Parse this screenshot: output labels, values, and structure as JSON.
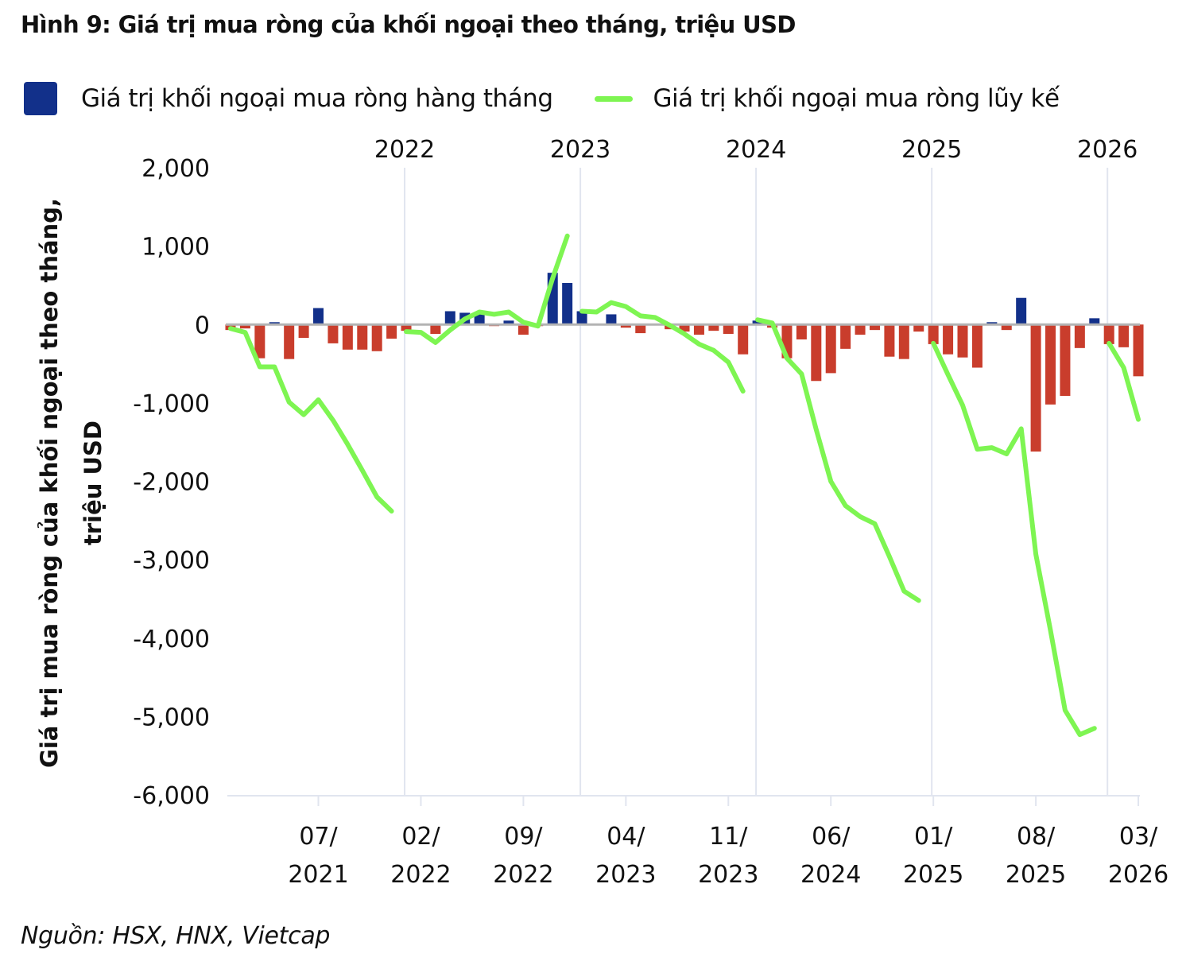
{
  "title": "Hình 9: Giá trị mua ròng của khối ngoại theo tháng, triệu USD",
  "source": "Nguồn: HSX, HNX, Vietcap",
  "legend": {
    "bar_label": "Giá trị khối ngoại mua ròng hàng tháng",
    "line_label": "Giá trị khối ngoại mua ròng lũy kế"
  },
  "colors": {
    "positive_bar": "#12308a",
    "negative_bar": "#c93d2c",
    "line": "#7ef552",
    "zero_line": "#b3b3b3",
    "grid_line": "#e1e5ef"
  },
  "chart_data": {
    "type": "bar",
    "title": "Hình 9: Giá trị mua ròng của khối ngoại theo tháng, triệu USD",
    "xlabel": "",
    "ylabel": "Giá trị mua ròng của khối ngoại theo tháng, triệu USD",
    "ylabel_lines": [
      "Giá trị mua ròng của khối ngoại theo tháng,",
      "triệu USD"
    ],
    "ylim": [
      -6000,
      2000
    ],
    "yticks": [
      2000,
      1000,
      0,
      -1000,
      -2000,
      -3000,
      -4000,
      -5000,
      -6000
    ],
    "ytick_labels": [
      "2,000",
      "1,000",
      "0",
      "-1,000",
      "-2,000",
      "-3,000",
      "-4,000",
      "-5,000",
      "-6,000"
    ],
    "grid": false,
    "legend_position": "top",
    "year_separators": [
      "2022",
      "2023",
      "2024",
      "2025",
      "2026"
    ],
    "xtick_labels": [
      {
        "month_index": 6,
        "line1": "07/",
        "line2": "2021"
      },
      {
        "month_index": 13,
        "line1": "02/",
        "line2": "2022"
      },
      {
        "month_index": 20,
        "line1": "09/",
        "line2": "2022"
      },
      {
        "month_index": 27,
        "line1": "04/",
        "line2": "2023"
      },
      {
        "month_index": 34,
        "line1": "11/",
        "line2": "2023"
      },
      {
        "month_index": 41,
        "line1": "06/",
        "line2": "2024"
      },
      {
        "month_index": 48,
        "line1": "01/",
        "line2": "2025"
      },
      {
        "month_index": 55,
        "line1": "08/",
        "line2": "2025"
      },
      {
        "month_index": 62,
        "line1": "03/",
        "line2": "2026"
      }
    ],
    "categories": [
      "01/2021",
      "02/2021",
      "03/2021",
      "04/2021",
      "05/2021",
      "06/2021",
      "07/2021",
      "08/2021",
      "09/2021",
      "10/2021",
      "11/2021",
      "12/2021",
      "01/2022",
      "02/2022",
      "03/2022",
      "04/2022",
      "05/2022",
      "06/2022",
      "07/2022",
      "08/2022",
      "09/2022",
      "10/2022",
      "11/2022",
      "12/2022",
      "01/2023",
      "02/2023",
      "03/2023",
      "04/2023",
      "05/2023",
      "06/2023",
      "07/2023",
      "08/2023",
      "09/2023",
      "10/2023",
      "11/2023",
      "12/2023",
      "01/2024",
      "02/2024",
      "03/2024",
      "04/2024",
      "05/2024",
      "06/2024",
      "07/2024",
      "08/2024",
      "09/2024",
      "10/2024",
      "11/2024",
      "12/2024",
      "01/2025",
      "02/2025",
      "03/2025",
      "04/2025",
      "05/2025",
      "06/2025",
      "07/2025",
      "08/2025",
      "09/2025",
      "10/2025",
      "11/2025",
      "12/2025",
      "01/2026",
      "02/2026",
      "03/2026"
    ],
    "series": [
      {
        "name": "Giá trị khối ngoại mua ròng hàng tháng",
        "type": "bar",
        "values": [
          -70,
          -50,
          -430,
          30,
          -440,
          -170,
          210,
          -240,
          -320,
          -320,
          -340,
          -180,
          -80,
          0,
          -120,
          170,
          150,
          150,
          -20,
          50,
          -130,
          -20,
          660,
          530,
          170,
          0,
          130,
          -40,
          -110,
          0,
          -60,
          -90,
          -130,
          -80,
          -120,
          -380,
          50,
          -40,
          -430,
          -190,
          -720,
          -620,
          -310,
          -130,
          -70,
          -410,
          -440,
          -90,
          -250,
          -380,
          -420,
          -550,
          30,
          -70,
          340,
          -1620,
          -1020,
          -910,
          -300,
          80,
          -250,
          -290,
          -660
        ]
      },
      {
        "name": "Giá trị khối ngoại mua ròng lũy kế",
        "type": "line",
        "note": "cumulative resets each calendar year",
        "segments": [
          {
            "year": "2021",
            "start_index": 0,
            "values": [
              -50,
              -100,
              -540,
              -540,
              -990,
              -1150,
              -960,
              -1220,
              -1530,
              -1860,
              -2200,
              -2380
            ]
          },
          {
            "year": "2022",
            "start_index": 12,
            "values": [
              -90,
              -100,
              -230,
              -70,
              70,
              160,
              130,
              160,
              30,
              -20,
              590,
              1130
            ]
          },
          {
            "year": "2023",
            "start_index": 24,
            "values": [
              170,
              160,
              280,
              230,
              110,
              90,
              -10,
              -120,
              -250,
              -330,
              -480,
              -850
            ]
          },
          {
            "year": "2024",
            "start_index": 36,
            "values": [
              60,
              20,
              -430,
              -630,
              -1340,
              -2000,
              -2310,
              -2450,
              -2540,
              -2960,
              -3400,
              -3520
            ]
          },
          {
            "year": "2025",
            "start_index": 48,
            "values": [
              -240,
              -640,
              -1030,
              -1590,
              -1570,
              -1650,
              -1330,
              -2930,
              -3900,
              -4920,
              -5230,
              -5150
            ]
          },
          {
            "year": "2026",
            "start_index": 60,
            "values": [
              -240,
              -550,
              -1210
            ]
          }
        ]
      }
    ]
  }
}
